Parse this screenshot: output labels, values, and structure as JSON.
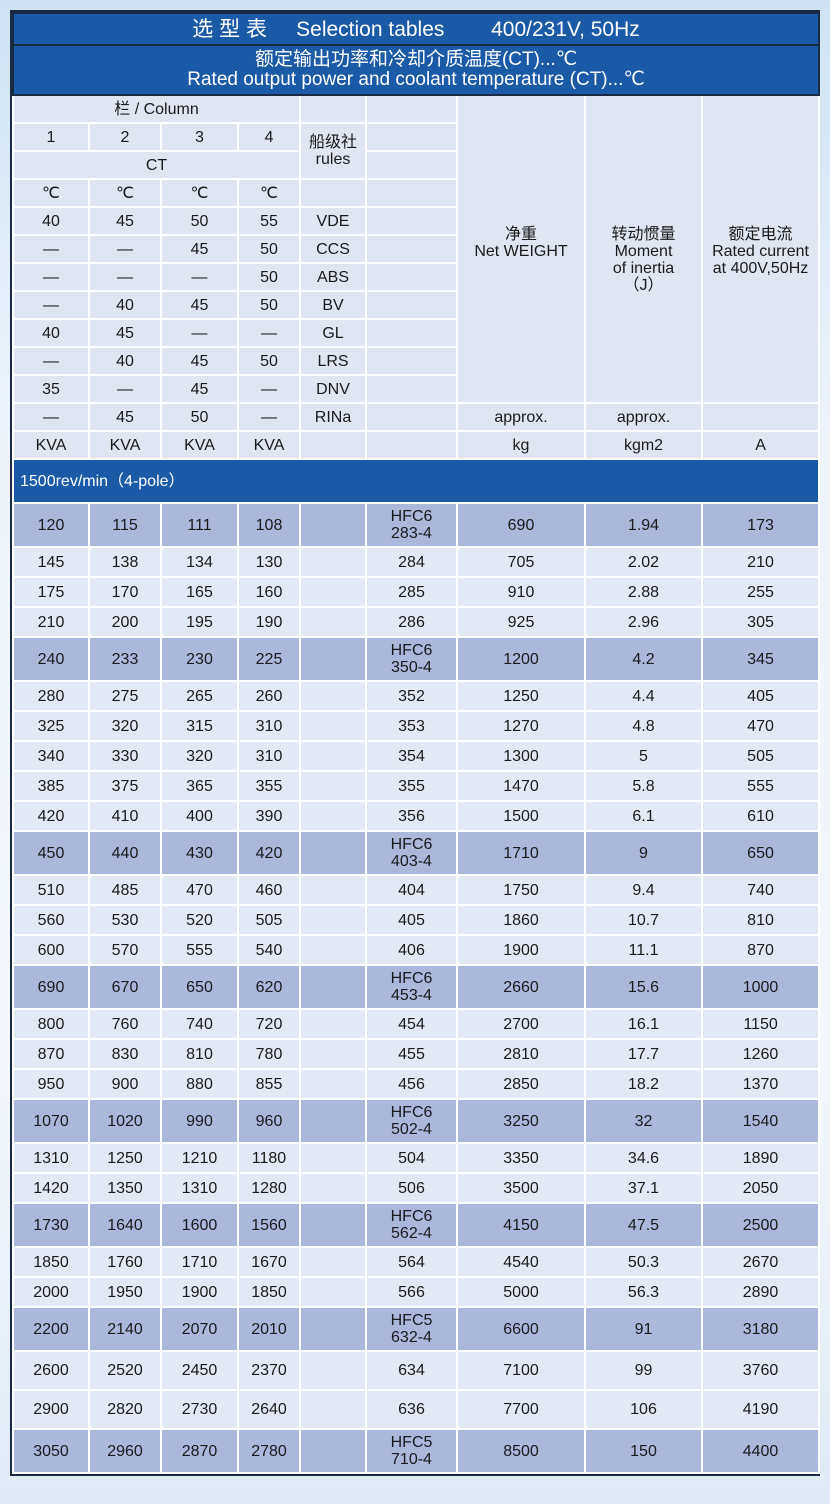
{
  "title": {
    "cn": "选 型 表",
    "en": "Selection tables",
    "spec": "400/231V, 50Hz"
  },
  "subtitle": {
    "cn": "额定输出功率和冷却介质温度(CT)...℃",
    "en": "Rated output power and coolant temperature (CT)...℃"
  },
  "header": {
    "column_label": "栏 / Column",
    "columns": [
      "1",
      "2",
      "3",
      "4"
    ],
    "ct_label": "CT",
    "rules_label": "船级社\nrules",
    "units_c": [
      "℃",
      "℃",
      "℃",
      "℃"
    ],
    "rules": [
      {
        "vals": [
          "40",
          "45",
          "50",
          "55"
        ],
        "name": "VDE"
      },
      {
        "vals": [
          "—",
          "—",
          "45",
          "50"
        ],
        "name": "CCS"
      },
      {
        "vals": [
          "—",
          "—",
          "—",
          "50"
        ],
        "name": "ABS"
      },
      {
        "vals": [
          "—",
          "40",
          "45",
          "50"
        ],
        "name": "BV"
      },
      {
        "vals": [
          "40",
          "45",
          "—",
          "—"
        ],
        "name": "GL"
      },
      {
        "vals": [
          "—",
          "40",
          "45",
          "50"
        ],
        "name": "LRS"
      },
      {
        "vals": [
          "35",
          "—",
          "45",
          "—"
        ],
        "name": "DNV"
      },
      {
        "vals": [
          "—",
          "45",
          "50",
          "—"
        ],
        "name": "RINa"
      }
    ],
    "weight": "净重\nNet WEIGHT",
    "inertia": "转动惯量\nMoment\nof inertia\n（J）",
    "current": "额定电流\nRated current\nat 400V,50Hz",
    "approx": "approx.",
    "units": [
      "KVA",
      "KVA",
      "KVA",
      "KVA",
      "",
      "",
      "kg",
      "kgm2",
      "A"
    ]
  },
  "section": "1500rev/min（4-pole）",
  "rows": [
    {
      "kva": [
        "120",
        "115",
        "111",
        "108"
      ],
      "type": "HFC6\n283-4",
      "kg": "690",
      "j": "1.94",
      "a": "173",
      "hl": true
    },
    {
      "kva": [
        "145",
        "138",
        "134",
        "130"
      ],
      "type": "284",
      "kg": "705",
      "j": "2.02",
      "a": "210"
    },
    {
      "kva": [
        "175",
        "170",
        "165",
        "160"
      ],
      "type": "285",
      "kg": "910",
      "j": "2.88",
      "a": "255"
    },
    {
      "kva": [
        "210",
        "200",
        "195",
        "190"
      ],
      "type": "286",
      "kg": "925",
      "j": "2.96",
      "a": "305"
    },
    {
      "kva": [
        "240",
        "233",
        "230",
        "225"
      ],
      "type": "HFC6\n350-4",
      "kg": "1200",
      "j": "4.2",
      "a": "345",
      "hl": true
    },
    {
      "kva": [
        "280",
        "275",
        "265",
        "260"
      ],
      "type": "352",
      "kg": "1250",
      "j": "4.4",
      "a": "405"
    },
    {
      "kva": [
        "325",
        "320",
        "315",
        "310"
      ],
      "type": "353",
      "kg": "1270",
      "j": "4.8",
      "a": "470"
    },
    {
      "kva": [
        "340",
        "330",
        "320",
        "310"
      ],
      "type": "354",
      "kg": "1300",
      "j": "5",
      "a": "505"
    },
    {
      "kva": [
        "385",
        "375",
        "365",
        "355"
      ],
      "type": "355",
      "kg": "1470",
      "j": "5.8",
      "a": "555"
    },
    {
      "kva": [
        "420",
        "410",
        "400",
        "390"
      ],
      "type": "356",
      "kg": "1500",
      "j": "6.1",
      "a": "610"
    },
    {
      "kva": [
        "450",
        "440",
        "430",
        "420"
      ],
      "type": "HFC6\n403-4",
      "kg": "1710",
      "j": "9",
      "a": "650",
      "hl": true
    },
    {
      "kva": [
        "510",
        "485",
        "470",
        "460"
      ],
      "type": "404",
      "kg": "1750",
      "j": "9.4",
      "a": "740"
    },
    {
      "kva": [
        "560",
        "530",
        "520",
        "505"
      ],
      "type": "405",
      "kg": "1860",
      "j": "10.7",
      "a": "810"
    },
    {
      "kva": [
        "600",
        "570",
        "555",
        "540"
      ],
      "type": "406",
      "kg": "1900",
      "j": "11.1",
      "a": "870"
    },
    {
      "kva": [
        "690",
        "670",
        "650",
        "620"
      ],
      "type": "HFC6\n453-4",
      "kg": "2660",
      "j": "15.6",
      "a": "1000",
      "hl": true
    },
    {
      "kva": [
        "800",
        "760",
        "740",
        "720"
      ],
      "type": "454",
      "kg": "2700",
      "j": "16.1",
      "a": "1150"
    },
    {
      "kva": [
        "870",
        "830",
        "810",
        "780"
      ],
      "type": "455",
      "kg": "2810",
      "j": "17.7",
      "a": "1260"
    },
    {
      "kva": [
        "950",
        "900",
        "880",
        "855"
      ],
      "type": "456",
      "kg": "2850",
      "j": "18.2",
      "a": "1370"
    },
    {
      "kva": [
        "1070",
        "1020",
        "990",
        "960"
      ],
      "type": "HFC6\n502-4",
      "kg": "3250",
      "j": "32",
      "a": "1540",
      "hl": true
    },
    {
      "kva": [
        "1310",
        "1250",
        "1210",
        "1180"
      ],
      "type": "504",
      "kg": "3350",
      "j": "34.6",
      "a": "1890"
    },
    {
      "kva": [
        "1420",
        "1350",
        "1310",
        "1280"
      ],
      "type": "506",
      "kg": "3500",
      "j": "37.1",
      "a": "2050"
    },
    {
      "kva": [
        "1730",
        "1640",
        "1600",
        "1560"
      ],
      "type": "HFC6\n562-4",
      "kg": "4150",
      "j": "47.5",
      "a": "2500",
      "hl": true
    },
    {
      "kva": [
        "1850",
        "1760",
        "1710",
        "1670"
      ],
      "type": "564",
      "kg": "4540",
      "j": "50.3",
      "a": "2670"
    },
    {
      "kva": [
        "2000",
        "1950",
        "1900",
        "1850"
      ],
      "type": "566",
      "kg": "5000",
      "j": "56.3",
      "a": "2890"
    },
    {
      "kva": [
        "2200",
        "2140",
        "2070",
        "2010"
      ],
      "type": "HFC5\n632-4",
      "kg": "6600",
      "j": "91",
      "a": "3180",
      "hl": true
    },
    {
      "kva": [
        "2600",
        "2520",
        "2450",
        "2370"
      ],
      "type": "634",
      "kg": "7100",
      "j": "99",
      "a": "3760",
      "tall": true
    },
    {
      "kva": [
        "2900",
        "2820",
        "2730",
        "2640"
      ],
      "type": "636",
      "kg": "7700",
      "j": "106",
      "a": "4190",
      "tall": true
    },
    {
      "kva": [
        "3050",
        "2960",
        "2870",
        "2780"
      ],
      "type": "HFC5\n710-4",
      "kg": "8500",
      "j": "150",
      "a": "4400",
      "hl": true
    }
  ],
  "colors": {
    "header_blue": "#1a5aa6",
    "cell": "#e3e9f4",
    "highlight": "#abb8dc"
  }
}
